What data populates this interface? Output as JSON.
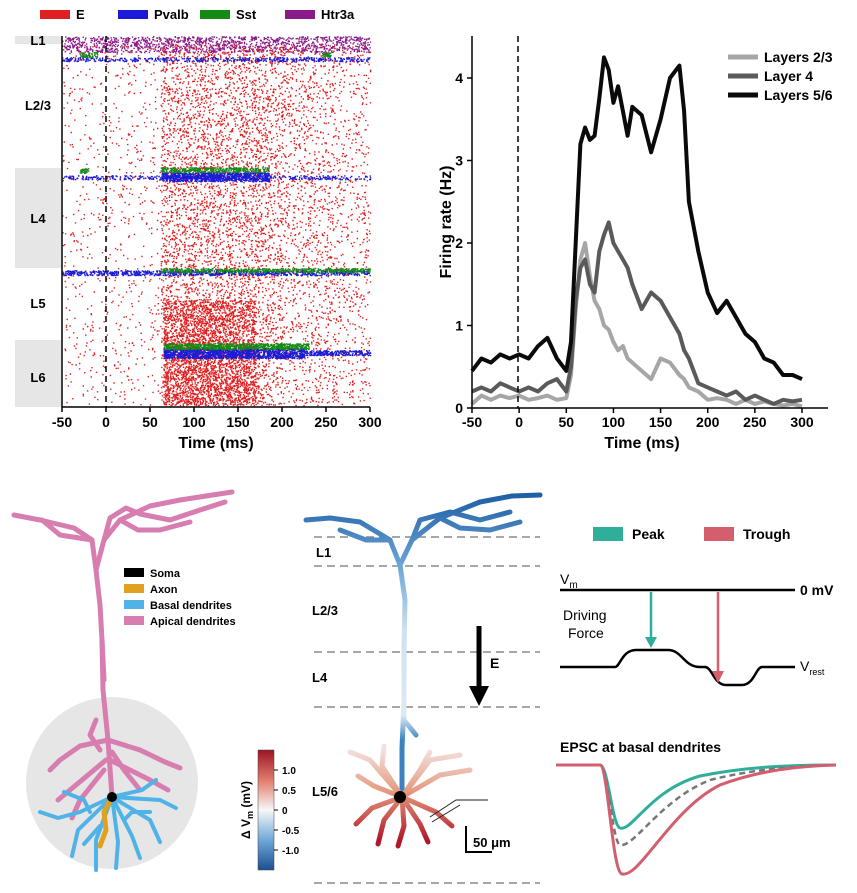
{
  "raster": {
    "legend": [
      {
        "label": "E",
        "color": "#e02020"
      },
      {
        "label": "Pvalb",
        "color": "#1a1ad8"
      },
      {
        "label": "Sst",
        "color": "#158a15"
      },
      {
        "label": "Htr3a",
        "color": "#8a1a8a"
      }
    ],
    "layers": [
      "L1",
      "L2/3",
      "L4",
      "L5",
      "L6"
    ],
    "x_ticks": [
      "-50",
      "0",
      "50",
      "100",
      "150",
      "200",
      "250",
      "300"
    ],
    "x_label": "Time (ms)",
    "x_range": [
      -50,
      300
    ]
  },
  "chart_data": {
    "type": "line",
    "title": "",
    "xlabel": "Time (ms)",
    "ylabel": "Firing rate (Hz)",
    "xlim": [
      -50,
      300
    ],
    "ylim": [
      0,
      4.5
    ],
    "x_ticks": [
      "-50",
      "0",
      "50",
      "100",
      "150",
      "200",
      "250",
      "300"
    ],
    "y_ticks": [
      "0",
      "1",
      "2",
      "3",
      "4"
    ],
    "stimulus_onset": 0,
    "x": [
      -50,
      -40,
      -30,
      -20,
      -10,
      0,
      10,
      20,
      30,
      40,
      50,
      55,
      60,
      65,
      70,
      75,
      80,
      85,
      90,
      95,
      100,
      105,
      110,
      115,
      120,
      130,
      140,
      150,
      160,
      170,
      175,
      180,
      190,
      200,
      210,
      220,
      230,
      240,
      250,
      260,
      270,
      280,
      290,
      300
    ],
    "series": [
      {
        "name": "Layers 2/3",
        "color": "#a6a6a6",
        "values": [
          0.05,
          0.15,
          0.1,
          0.15,
          0.12,
          0.15,
          0.1,
          0.12,
          0.15,
          0.1,
          0.12,
          0.4,
          1.2,
          1.8,
          2.0,
          1.6,
          1.3,
          1.2,
          1.0,
          0.95,
          0.8,
          0.7,
          0.75,
          0.6,
          0.55,
          0.45,
          0.35,
          0.6,
          0.55,
          0.4,
          0.35,
          0.25,
          0.2,
          0.1,
          0.12,
          0.1,
          0.05,
          0.1,
          0.05,
          0.08,
          0.05,
          0.03,
          0.05,
          0.02
        ]
      },
      {
        "name": "Layer 4",
        "color": "#5a5a5a",
        "values": [
          0.2,
          0.25,
          0.2,
          0.3,
          0.25,
          0.2,
          0.25,
          0.2,
          0.3,
          0.35,
          0.2,
          0.5,
          1.3,
          1.7,
          1.8,
          1.5,
          1.4,
          1.9,
          2.1,
          2.25,
          2.0,
          1.9,
          1.8,
          1.7,
          1.5,
          1.2,
          1.4,
          1.3,
          1.1,
          0.9,
          0.7,
          0.6,
          0.3,
          0.25,
          0.2,
          0.15,
          0.2,
          0.1,
          0.15,
          0.1,
          0.05,
          0.1,
          0.08,
          0.1
        ]
      },
      {
        "name": "Layers 5/6",
        "color": "#0a0a0a",
        "values": [
          0.45,
          0.6,
          0.55,
          0.65,
          0.6,
          0.65,
          0.6,
          0.75,
          0.85,
          0.6,
          0.45,
          0.8,
          2.0,
          3.2,
          3.4,
          3.25,
          3.3,
          3.75,
          4.25,
          4.1,
          3.7,
          3.9,
          3.6,
          3.3,
          3.65,
          3.55,
          3.1,
          3.5,
          4.0,
          4.15,
          3.6,
          2.5,
          1.9,
          1.4,
          1.15,
          1.3,
          1.1,
          0.9,
          0.8,
          0.6,
          0.55,
          0.4,
          0.4,
          0.35
        ]
      }
    ]
  },
  "neuron1": {
    "legend": [
      {
        "label": "Soma",
        "color": "#000000"
      },
      {
        "label": "Axon",
        "color": "#e0a21e"
      },
      {
        "label": "Basal dendrites",
        "color": "#4fb3e8"
      },
      {
        "label": "Apical dendrites",
        "color": "#d77db0"
      }
    ]
  },
  "neuron2": {
    "layers": [
      "L1",
      "L2/3",
      "L4",
      "L5/6"
    ],
    "field_label": "E",
    "colorbar_ticks": [
      "1.0",
      "0.5",
      "0",
      "-0.5",
      "-1.0"
    ],
    "colorbar_label": "Δ V",
    "colorbar_sub": "m",
    "colorbar_unit": " (mV)",
    "scale_bar": "50 μm"
  },
  "driving": {
    "legend": [
      {
        "label": "Peak",
        "color": "#2fae9a"
      },
      {
        "label": "Trough",
        "color": "#d35f6e"
      }
    ],
    "vm_label": "V",
    "vm_sub": "m",
    "zero_label": "0 mV",
    "force_label_1": "Driving",
    "force_label_2": "Force",
    "rest_label": "V",
    "rest_sub": "rest"
  },
  "epsc": {
    "title": "EPSC at basal dendrites"
  }
}
